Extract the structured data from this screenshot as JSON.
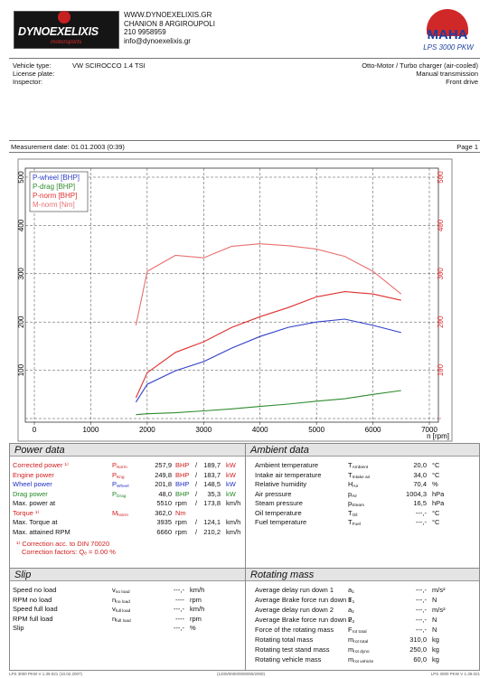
{
  "header": {
    "logo": "DYNOEXELIXIS",
    "logo_sub": "motorsports",
    "address": [
      "WWW.DYNOEXELIXIS.GR",
      "CHANION 8 ARGIROUPOLI",
      "210 9958959",
      "info@dynoexelixis.gr"
    ],
    "brand": "MAHA",
    "model": "LPS 3000 PKW"
  },
  "vehicle": {
    "fields": [
      {
        "label": "Vehicle type:",
        "value": "VW SCIROCCO 1.4 TSI"
      },
      {
        "label": "License plate:"
      },
      {
        "label": "Inspector:"
      }
    ],
    "specs": [
      "Otto-Motor / Turbo charger (air-cooled)",
      "Manual transmission",
      "Front drive"
    ]
  },
  "measurement": {
    "date": "Measurement date: 01.01.2003 (0:39)",
    "page": "Page 1"
  },
  "chart_data": {
    "type": "line",
    "x": [
      1800,
      2000,
      2500,
      3000,
      3500,
      4000,
      4500,
      5000,
      5500,
      6000,
      6500
    ],
    "xlabel": "n [rpm]",
    "xlim": [
      0,
      7000
    ],
    "xticks": [
      0,
      1000,
      2000,
      3000,
      4000,
      5000,
      6000,
      7000
    ],
    "ylim": [
      0,
      500
    ],
    "yticks": [
      0,
      100,
      200,
      300,
      400,
      500
    ],
    "y2lim": [
      0,
      500
    ],
    "y2ticks": [
      0,
      100,
      200,
      300,
      400,
      500
    ],
    "y2color": "#e03030",
    "grid": true,
    "legend": "upper left",
    "series": [
      {
        "name": "P-wheel [BHP]",
        "color": "#3040c8",
        "values": [
          34,
          71,
          99,
          118,
          146,
          170,
          189,
          200,
          206,
          193,
          178
        ]
      },
      {
        "name": "P-drag [BHP]",
        "color": "#2e8b2e",
        "values": [
          8,
          10,
          12,
          16,
          20,
          25,
          30,
          36,
          41,
          50,
          58
        ]
      },
      {
        "name": "P-norm [BHP]",
        "color": "#e03030",
        "values": [
          43,
          95,
          137,
          159,
          189,
          211,
          230,
          252,
          263,
          258,
          245
        ]
      },
      {
        "name": "M-norm [Nm]",
        "color": "#e87070",
        "axis": "y2",
        "values": [
          193,
          305,
          338,
          333,
          357,
          362,
          358,
          351,
          336,
          305,
          258
        ]
      }
    ]
  },
  "power_data": {
    "title": "Power data",
    "separator": "/",
    "rows": [
      {
        "label": "Corrected power ¹⁾",
        "sym": "P",
        "sub": "Norm",
        "v1": "257,9",
        "u1": "BHP",
        "v2": "189,7",
        "u2": "kW",
        "color": "#d02020"
      },
      {
        "label": "Engine power",
        "sym": "P",
        "sub": "Eng",
        "v1": "249,8",
        "u1": "BHP",
        "v2": "183,7",
        "u2": "kW",
        "color": "#d02020"
      },
      {
        "label": "Wheel power",
        "sym": "P",
        "sub": "Wheel",
        "v1": "201,8",
        "u1": "BHP",
        "v2": "148,5",
        "u2": "kW",
        "color": "#2030c0"
      },
      {
        "label": "Drag power",
        "sym": "P",
        "sub": "Drag",
        "v1": "48,0",
        "u1": "BHP",
        "v2": "35,3",
        "u2": "kW",
        "color": "#228822"
      },
      {
        "label": "Max. power at",
        "v1": "5510",
        "u1": "rpm",
        "v2": "173,8",
        "u2": "km/h"
      },
      {
        "label": "Torque ¹⁾",
        "sym": "M",
        "sub": "Norm",
        "v1": "362,0",
        "u1": "Nm",
        "color": "#d02020"
      },
      {
        "label": "Max. Torque at",
        "v1": "3935",
        "u1": "rpm",
        "v2": "124,1",
        "u2": "km/h"
      },
      {
        "label": "Max. attained RPM",
        "v1": "6660",
        "u1": "rpm",
        "v2": "210,2",
        "u2": "km/h"
      }
    ],
    "notes": [
      "¹⁾ Correction acc. to DIN 70020",
      "Correction factors: Qₑ =   0.00 %"
    ]
  },
  "ambient_data": {
    "title": "Ambient data",
    "rows": [
      {
        "label": "Ambient temperature",
        "sym": "T",
        "sub": "Ambient",
        "v1": "20,0",
        "u1": "°C"
      },
      {
        "label": "Intake air temperature",
        "sym": "T",
        "sub": "Intake air",
        "v1": "34,0",
        "u1": "°C"
      },
      {
        "label": "Relative humidity",
        "sym": "H",
        "sub": "Air",
        "v1": "70,4",
        "u1": "%"
      },
      {
        "label": "Air pressure",
        "sym": "p",
        "sub": "Air",
        "v1": "1004,3",
        "u1": "hPa"
      },
      {
        "label": "Steam pressure",
        "sym": "p",
        "sub": "Steam",
        "v1": "16,5",
        "u1": "hPa"
      },
      {
        "label": "Oil temperature",
        "sym": "T",
        "sub": "Oil",
        "v1": "---,-",
        "u1": "°C"
      },
      {
        "label": "Fuel temperature",
        "sym": "T",
        "sub": "Fuel",
        "v1": "---,-",
        "u1": "°C"
      }
    ]
  },
  "slip": {
    "title": "Slip",
    "rows": [
      {
        "label": "Speed no load",
        "sym": "v",
        "sub": "no load",
        "v1": "---,-",
        "u1": "km/h"
      },
      {
        "label": "RPM no load",
        "sym": "n",
        "sub": "no load",
        "v1": "----",
        "u1": "rpm"
      },
      {
        "label": "Speed full load",
        "sym": "v",
        "sub": "full load",
        "v1": "---,-",
        "u1": "km/h"
      },
      {
        "label": "RPM full load",
        "sym": "n",
        "sub": "full load",
        "v1": "----",
        "u1": "rpm"
      },
      {
        "label": "Slip",
        "v1": "---,-",
        "u1": "%"
      }
    ]
  },
  "rotating_mass": {
    "title": "Rotating mass",
    "rows": [
      {
        "label": "Average delay run down 1",
        "sym": "a",
        "sub": "1",
        "v1": "---,-",
        "u1": "m/s²"
      },
      {
        "label": "Average Brake force run down 1",
        "sym": "F",
        "sub": "1",
        "v1": "---,-",
        "u1": "N"
      },
      {
        "label": "Average delay run down 2",
        "sym": "a",
        "sub": "2",
        "v1": "---,-",
        "u1": "m/s²"
      },
      {
        "label": "Average Brake force run down 2",
        "sym": "F",
        "sub": "2",
        "v1": "---,-",
        "u1": "N"
      },
      {
        "label": "Force of the rotating mass",
        "sym": "F",
        "sub": "rot total",
        "v1": "---,-",
        "u1": "N"
      },
      {
        "label": "Rotating total mass",
        "sym": "m",
        "sub": "rot total",
        "v1": "310,0",
        "u1": "kg"
      },
      {
        "label": "Rotating test stand mass",
        "sym": "m",
        "sub": "rot dyno",
        "v1": "250,0",
        "u1": "kg"
      },
      {
        "label": "Rotating vehicle mass",
        "sym": "m",
        "sub": "rot vehicle",
        "v1": "60,0",
        "u1": "kg"
      }
    ]
  },
  "footer": [
    "LPS 3000 PKW V 1.39.021 (10.02.2007)",
    "(1200/0000/0000/80/2000)",
    "LPS 3000 PKW V 1.39.021"
  ]
}
